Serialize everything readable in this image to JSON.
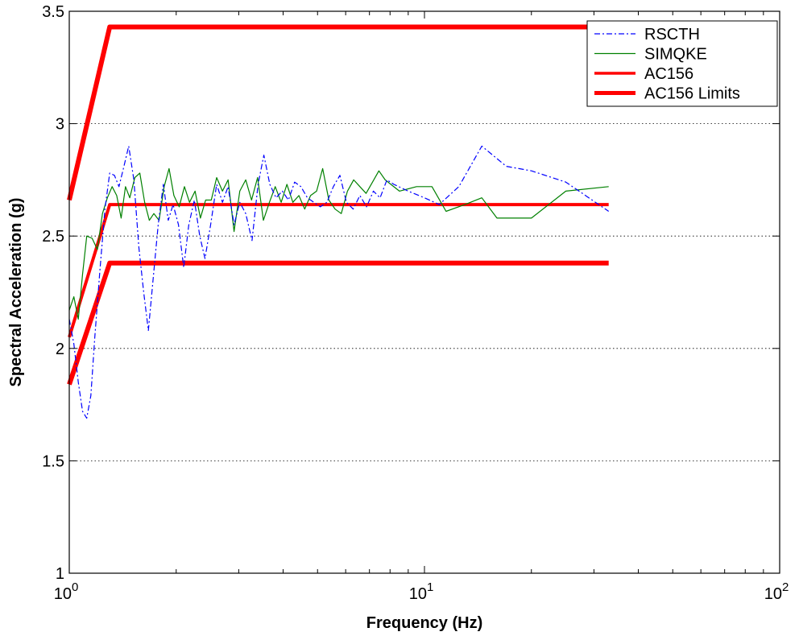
{
  "chart_data": {
    "type": "line",
    "title": "",
    "xlabel": "Frequency (Hz)",
    "ylabel": "Spectral Acceleration (g)",
    "xscale": "log",
    "xlim": [
      1,
      100
    ],
    "ylim": [
      1,
      3.5
    ],
    "x_tick_labels": [
      {
        "base": "10",
        "exp": "0",
        "value": 1
      },
      {
        "base": "10",
        "exp": "1",
        "value": 10
      },
      {
        "base": "10",
        "exp": "2",
        "value": 100
      }
    ],
    "y_tick_labels": [
      "1",
      "1.5",
      "2",
      "2.5",
      "3",
      "3.5"
    ],
    "y_ticks": [
      1,
      1.5,
      2,
      2.5,
      3,
      3.5
    ],
    "grid": "horizontal-dotted",
    "legend_position": "top-right",
    "series": [
      {
        "name": "RSCTH",
        "color": "#0000ff",
        "style": "dashdot",
        "points": [
          [
            1.0,
            2.13
          ],
          [
            1.03,
            2.02
          ],
          [
            1.06,
            1.85
          ],
          [
            1.09,
            1.72
          ],
          [
            1.12,
            1.69
          ],
          [
            1.15,
            1.79
          ],
          [
            1.18,
            2.05
          ],
          [
            1.22,
            2.35
          ],
          [
            1.26,
            2.62
          ],
          [
            1.3,
            2.78
          ],
          [
            1.34,
            2.77
          ],
          [
            1.38,
            2.72
          ],
          [
            1.42,
            2.8
          ],
          [
            1.47,
            2.9
          ],
          [
            1.52,
            2.75
          ],
          [
            1.57,
            2.45
          ],
          [
            1.62,
            2.25
          ],
          [
            1.67,
            2.08
          ],
          [
            1.72,
            2.3
          ],
          [
            1.78,
            2.55
          ],
          [
            1.84,
            2.73
          ],
          [
            1.9,
            2.57
          ],
          [
            1.96,
            2.64
          ],
          [
            2.03,
            2.55
          ],
          [
            2.1,
            2.36
          ],
          [
            2.17,
            2.55
          ],
          [
            2.25,
            2.66
          ],
          [
            2.33,
            2.5
          ],
          [
            2.41,
            2.4
          ],
          [
            2.5,
            2.55
          ],
          [
            2.6,
            2.73
          ],
          [
            2.7,
            2.65
          ],
          [
            2.8,
            2.72
          ],
          [
            2.91,
            2.55
          ],
          [
            3.02,
            2.65
          ],
          [
            3.14,
            2.6
          ],
          [
            3.27,
            2.48
          ],
          [
            3.4,
            2.73
          ],
          [
            3.53,
            2.86
          ],
          [
            3.67,
            2.73
          ],
          [
            3.82,
            2.67
          ],
          [
            3.98,
            2.7
          ],
          [
            4.14,
            2.66
          ],
          [
            4.31,
            2.74
          ],
          [
            4.49,
            2.72
          ],
          [
            4.68,
            2.67
          ],
          [
            4.88,
            2.65
          ],
          [
            5.09,
            2.63
          ],
          [
            5.31,
            2.65
          ],
          [
            5.54,
            2.72
          ],
          [
            5.78,
            2.77
          ],
          [
            6.03,
            2.65
          ],
          [
            6.3,
            2.62
          ],
          [
            6.58,
            2.68
          ],
          [
            6.87,
            2.63
          ],
          [
            7.18,
            2.7
          ],
          [
            7.5,
            2.67
          ],
          [
            7.84,
            2.75
          ],
          [
            8.2,
            2.73
          ],
          [
            9.0,
            2.7
          ],
          [
            10.0,
            2.67
          ],
          [
            11.0,
            2.64
          ],
          [
            12.5,
            2.72
          ],
          [
            14.5,
            2.9
          ],
          [
            17.0,
            2.81
          ],
          [
            20.0,
            2.79
          ],
          [
            25.0,
            2.74
          ],
          [
            33.0,
            2.61
          ]
        ]
      },
      {
        "name": "SIMQKE",
        "color": "#008000",
        "style": "solid",
        "points": [
          [
            1.0,
            2.17
          ],
          [
            1.03,
            2.23
          ],
          [
            1.06,
            2.13
          ],
          [
            1.09,
            2.33
          ],
          [
            1.12,
            2.5
          ],
          [
            1.16,
            2.49
          ],
          [
            1.2,
            2.44
          ],
          [
            1.24,
            2.6
          ],
          [
            1.28,
            2.67
          ],
          [
            1.32,
            2.72
          ],
          [
            1.36,
            2.68
          ],
          [
            1.4,
            2.58
          ],
          [
            1.44,
            2.72
          ],
          [
            1.48,
            2.67
          ],
          [
            1.53,
            2.76
          ],
          [
            1.58,
            2.78
          ],
          [
            1.63,
            2.65
          ],
          [
            1.68,
            2.57
          ],
          [
            1.73,
            2.6
          ],
          [
            1.79,
            2.57
          ],
          [
            1.85,
            2.72
          ],
          [
            1.91,
            2.8
          ],
          [
            1.97,
            2.68
          ],
          [
            2.04,
            2.63
          ],
          [
            2.11,
            2.72
          ],
          [
            2.18,
            2.65
          ],
          [
            2.26,
            2.7
          ],
          [
            2.34,
            2.58
          ],
          [
            2.42,
            2.66
          ],
          [
            2.51,
            2.66
          ],
          [
            2.6,
            2.76
          ],
          [
            2.7,
            2.7
          ],
          [
            2.8,
            2.75
          ],
          [
            2.91,
            2.52
          ],
          [
            3.02,
            2.7
          ],
          [
            3.14,
            2.75
          ],
          [
            3.26,
            2.66
          ],
          [
            3.39,
            2.76
          ],
          [
            3.52,
            2.57
          ],
          [
            3.66,
            2.65
          ],
          [
            3.8,
            2.72
          ],
          [
            3.95,
            2.65
          ],
          [
            4.1,
            2.73
          ],
          [
            4.26,
            2.65
          ],
          [
            4.43,
            2.68
          ],
          [
            4.6,
            2.62
          ],
          [
            4.78,
            2.68
          ],
          [
            4.97,
            2.7
          ],
          [
            5.17,
            2.8
          ],
          [
            5.38,
            2.66
          ],
          [
            5.6,
            2.62
          ],
          [
            5.83,
            2.6
          ],
          [
            6.07,
            2.7
          ],
          [
            6.32,
            2.75
          ],
          [
            6.58,
            2.72
          ],
          [
            6.85,
            2.69
          ],
          [
            7.14,
            2.74
          ],
          [
            7.44,
            2.79
          ],
          [
            7.75,
            2.75
          ],
          [
            8.5,
            2.7
          ],
          [
            9.5,
            2.72
          ],
          [
            10.5,
            2.72
          ],
          [
            11.5,
            2.61
          ],
          [
            13.0,
            2.64
          ],
          [
            14.5,
            2.67
          ],
          [
            16.0,
            2.58
          ],
          [
            20.0,
            2.58
          ],
          [
            25.0,
            2.7
          ],
          [
            33.0,
            2.72
          ]
        ]
      },
      {
        "name": "AC156",
        "color": "#ff0000",
        "style": "solid",
        "width": "medium",
        "points": [
          [
            1.0,
            2.05
          ],
          [
            1.3,
            2.64
          ],
          [
            33.0,
            2.64
          ]
        ]
      },
      {
        "name": "AC156 Limits",
        "color": "#ff0000",
        "style": "solid",
        "width": "thick",
        "points": [
          [
            1.0,
            2.66
          ],
          [
            1.3,
            3.43
          ],
          [
            33.0,
            3.43
          ]
        ]
      },
      {
        "name": "",
        "color": "#ff0000",
        "style": "solid",
        "width": "thick",
        "points": [
          [
            1.0,
            1.84
          ],
          [
            1.3,
            2.38
          ],
          [
            33.0,
            2.38
          ]
        ]
      }
    ]
  }
}
